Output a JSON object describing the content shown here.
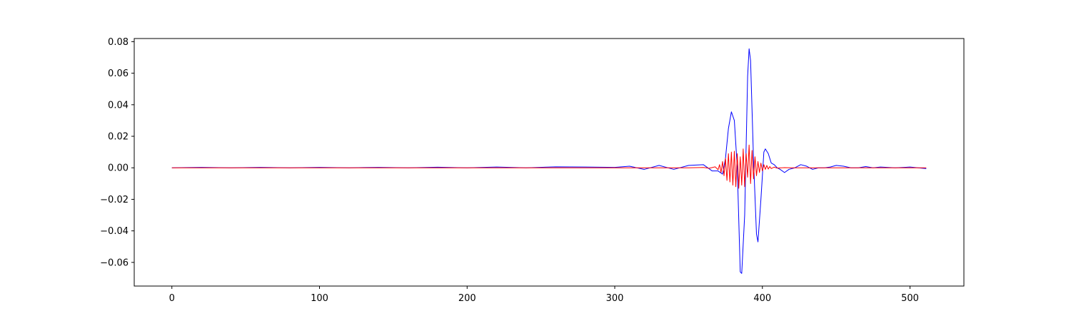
{
  "chart_data": {
    "type": "line",
    "title": "",
    "xlabel": "",
    "ylabel": "",
    "xlim": [
      -25.5,
      536.5
    ],
    "ylim": [
      -0.075,
      0.082
    ],
    "grid": false,
    "legend": "none",
    "x_ticks": [
      0,
      100,
      200,
      300,
      400,
      500
    ],
    "x_tick_labels": [
      "0",
      "100",
      "200",
      "300",
      "400",
      "500"
    ],
    "y_ticks": [
      -0.06,
      -0.04,
      -0.02,
      0.0,
      0.02,
      0.04,
      0.06,
      0.08
    ],
    "y_tick_labels": [
      "−0.06",
      "−0.04",
      "−0.02",
      "0.00",
      "0.02",
      "0.04",
      "0.06",
      "0.08"
    ],
    "x_range": [
      0,
      511
    ],
    "series": [
      {
        "color": "#0000ff",
        "points": [
          [
            0,
            0.0
          ],
          [
            20,
            0.0003
          ],
          [
            40,
            0.0
          ],
          [
            60,
            0.0003
          ],
          [
            80,
            0.0
          ],
          [
            100,
            0.0003
          ],
          [
            120,
            0.0
          ],
          [
            140,
            0.0003
          ],
          [
            160,
            0.0
          ],
          [
            180,
            0.0004
          ],
          [
            200,
            0.0
          ],
          [
            220,
            0.0005
          ],
          [
            240,
            0.0
          ],
          [
            260,
            0.0006
          ],
          [
            280,
            0.0005
          ],
          [
            300,
            0.0003
          ],
          [
            310,
            0.001
          ],
          [
            320,
            -0.001
          ],
          [
            330,
            0.0015
          ],
          [
            340,
            -0.001
          ],
          [
            350,
            0.0015
          ],
          [
            360,
            0.002
          ],
          [
            366,
            -0.002
          ],
          [
            370,
            -0.002
          ],
          [
            373,
            -0.004
          ],
          [
            375,
            0.006
          ],
          [
            377,
            0.025
          ],
          [
            379,
            0.0355
          ],
          [
            381,
            0.03
          ],
          [
            383,
            0.0
          ],
          [
            385,
            -0.066
          ],
          [
            386,
            -0.067
          ],
          [
            388,
            -0.03
          ],
          [
            390,
            0.058
          ],
          [
            391,
            0.0755
          ],
          [
            392,
            0.068
          ],
          [
            394,
            0.005
          ],
          [
            396,
            -0.042
          ],
          [
            397,
            -0.047
          ],
          [
            399,
            -0.02
          ],
          [
            401,
            0.01
          ],
          [
            402,
            0.012
          ],
          [
            404,
            0.009
          ],
          [
            406,
            0.003
          ],
          [
            408,
            0.002
          ],
          [
            410,
            0.0
          ],
          [
            412,
            -0.001
          ],
          [
            415,
            -0.003
          ],
          [
            418,
            -0.001
          ],
          [
            422,
            0.0
          ],
          [
            426,
            0.002
          ],
          [
            430,
            0.001
          ],
          [
            434,
            -0.001
          ],
          [
            438,
            0.0
          ],
          [
            442,
            0.0
          ],
          [
            446,
            0.0005
          ],
          [
            450,
            0.0015
          ],
          [
            455,
            0.001
          ],
          [
            460,
            0.0
          ],
          [
            465,
            0.0
          ],
          [
            470,
            0.0008
          ],
          [
            475,
            0.0
          ],
          [
            480,
            0.0005
          ],
          [
            490,
            0.0
          ],
          [
            500,
            0.0005
          ],
          [
            511,
            -0.0005
          ]
        ]
      },
      {
        "color": "#ff0000",
        "points": [
          [
            0,
            0.0
          ],
          [
            350,
            0.0
          ],
          [
            360,
            0.0002
          ],
          [
            364,
            -0.0003
          ],
          [
            368,
            0.0006
          ],
          [
            370,
            -0.0012
          ],
          [
            371,
            0.002
          ],
          [
            372,
            -0.003
          ],
          [
            373,
            0.004
          ],
          [
            374,
            -0.005
          ],
          [
            375,
            0.006
          ],
          [
            376,
            -0.008
          ],
          [
            377,
            0.009
          ],
          [
            378,
            -0.009
          ],
          [
            379,
            0.01
          ],
          [
            380,
            -0.011
          ],
          [
            381,
            0.0105
          ],
          [
            382,
            -0.012
          ],
          [
            383,
            0.009
          ],
          [
            384,
            -0.013
          ],
          [
            385,
            0.007
          ],
          [
            386,
            -0.011
          ],
          [
            387,
            0.012
          ],
          [
            388,
            -0.012
          ],
          [
            389,
            0.009
          ],
          [
            390,
            -0.006
          ],
          [
            391,
            0.0145
          ],
          [
            392,
            -0.01
          ],
          [
            393,
            0.011
          ],
          [
            394,
            -0.007
          ],
          [
            395,
            0.007
          ],
          [
            396,
            -0.005
          ],
          [
            397,
            0.004
          ],
          [
            398,
            -0.003
          ],
          [
            399,
            0.003
          ],
          [
            400,
            -0.002
          ],
          [
            401,
            0.002
          ],
          [
            402,
            -0.001
          ],
          [
            403,
            0.0015
          ],
          [
            404,
            -0.0008
          ],
          [
            405,
            0.0008
          ],
          [
            406,
            -0.0005
          ],
          [
            408,
            0.0004
          ],
          [
            410,
            -0.0002
          ],
          [
            415,
            0.0001
          ],
          [
            420,
            0.0
          ],
          [
            511,
            0.0
          ]
        ]
      }
    ]
  }
}
